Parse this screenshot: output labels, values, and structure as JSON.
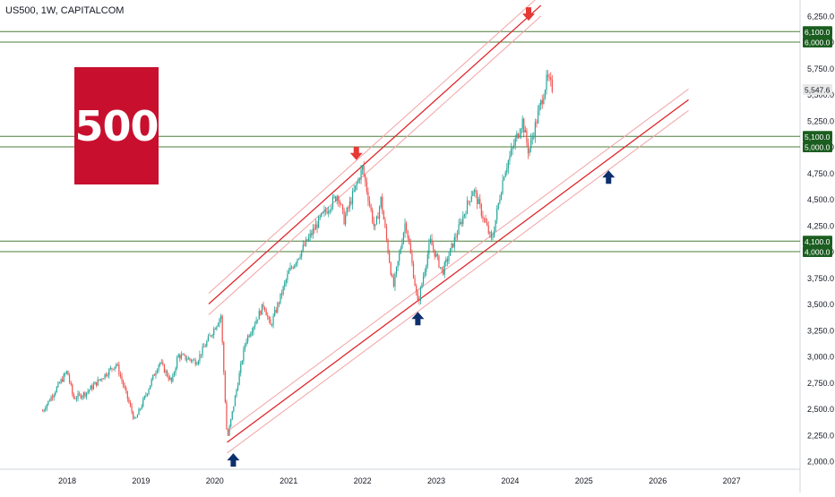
{
  "header": {
    "title": "US500, 1W, CAPITALCOM"
  },
  "logo": {
    "text": "500",
    "color": "#c8102e"
  },
  "chart_data": {
    "type": "candlestick",
    "title": "US500, 1W, CAPITALCOM",
    "ylim": [
      1950,
      6350
    ],
    "x_tick_labels": [
      "2018",
      "2019",
      "2020",
      "2021",
      "2022",
      "2023",
      "2024",
      "2025",
      "2026",
      "2027"
    ],
    "y_tick_labels": [
      "2,000.0",
      "2,250.0",
      "2,500.0",
      "2,750.0",
      "3,000.0",
      "3,250.0",
      "3,500.0",
      "3,750.0",
      "4,000.0",
      "4,250.0",
      "4,500.0",
      "4,750.0",
      "5,000.0",
      "5,250.0",
      "5,500.0",
      "5,750.0",
      "6,000.0",
      "6,250.0"
    ],
    "y_tick_values": [
      2000,
      2250,
      2500,
      2750,
      3000,
      3250,
      3500,
      3750,
      4000,
      4250,
      4500,
      4750,
      5000,
      5250,
      5500,
      5750,
      6000,
      6250
    ],
    "price_path": [
      {
        "date": "2017-09",
        "price": 2480
      },
      {
        "date": "2018-01",
        "price": 2860
      },
      {
        "date": "2018-02",
        "price": 2600
      },
      {
        "date": "2018-04",
        "price": 2650
      },
      {
        "date": "2018-09",
        "price": 2930
      },
      {
        "date": "2018-12",
        "price": 2380
      },
      {
        "date": "2019-04",
        "price": 2950
      },
      {
        "date": "2019-06",
        "price": 2750
      },
      {
        "date": "2019-07",
        "price": 3010
      },
      {
        "date": "2019-10",
        "price": 2950
      },
      {
        "date": "2020-02",
        "price": 3390
      },
      {
        "date": "2020-03",
        "price": 2200
      },
      {
        "date": "2020-06",
        "price": 3150
      },
      {
        "date": "2020-09",
        "price": 3500
      },
      {
        "date": "2020-10",
        "price": 3280
      },
      {
        "date": "2021-01",
        "price": 3800
      },
      {
        "date": "2021-06",
        "price": 4300
      },
      {
        "date": "2021-09",
        "price": 4550
      },
      {
        "date": "2021-10",
        "price": 4300
      },
      {
        "date": "2022-01",
        "price": 4800
      },
      {
        "date": "2022-03",
        "price": 4200
      },
      {
        "date": "2022-04",
        "price": 4500
      },
      {
        "date": "2022-06",
        "price": 3650
      },
      {
        "date": "2022-08",
        "price": 4300
      },
      {
        "date": "2022-10",
        "price": 3500
      },
      {
        "date": "2022-12",
        "price": 4100
      },
      {
        "date": "2023-02",
        "price": 3800
      },
      {
        "date": "2023-07",
        "price": 4600
      },
      {
        "date": "2023-10",
        "price": 4100
      },
      {
        "date": "2023-12",
        "price": 4750
      },
      {
        "date": "2024-03",
        "price": 5250
      },
      {
        "date": "2024-04",
        "price": 4950
      },
      {
        "date": "2024-07",
        "price": 5650
      },
      {
        "date": "2024-08",
        "price": 5547.6
      }
    ],
    "last_price": 5547.6,
    "last_price_label": "5,547.6",
    "horizontal_levels": [
      {
        "value": 6100,
        "label": "6,100.0"
      },
      {
        "value": 6000,
        "label": "6,000.0"
      },
      {
        "value": 5100,
        "label": "5,100.0"
      },
      {
        "value": 5000,
        "label": "5,000.0"
      },
      {
        "value": 4100,
        "label": "4,100.0"
      },
      {
        "value": 4000,
        "label": "4,000.0"
      }
    ],
    "channels": [
      {
        "name": "upper",
        "start": {
          "date": "2019-12",
          "price": 3500
        },
        "end": {
          "date": "2024-06",
          "price": 6350
        }
      },
      {
        "name": "lower",
        "start": {
          "date": "2020-03",
          "price": 2180
        },
        "end": {
          "date": "2026-06",
          "price": 5450
        }
      }
    ],
    "arrows": [
      {
        "direction": "down",
        "date": "2021-12",
        "price": 4900,
        "color": "#e53935"
      },
      {
        "direction": "down",
        "date": "2024-04",
        "price": 6230,
        "color": "#e53935"
      },
      {
        "direction": "up",
        "date": "2020-04",
        "price": 2050,
        "color": "#0d2f6e"
      },
      {
        "direction": "up",
        "date": "2022-10",
        "price": 3400,
        "color": "#0d2f6e"
      },
      {
        "direction": "up",
        "date": "2025-05",
        "price": 4750,
        "color": "#0d2f6e"
      }
    ],
    "colors": {
      "up_candle": "#26a69a",
      "down_candle": "#ef5350",
      "level_line": "#4b7f3a",
      "level_label_bg": "#1b5e20",
      "channel_main": "#e0272c",
      "channel_outer": "#f2a3a6",
      "last_price_bg": "#e8e8e8"
    },
    "grid": false,
    "legend": "none"
  }
}
